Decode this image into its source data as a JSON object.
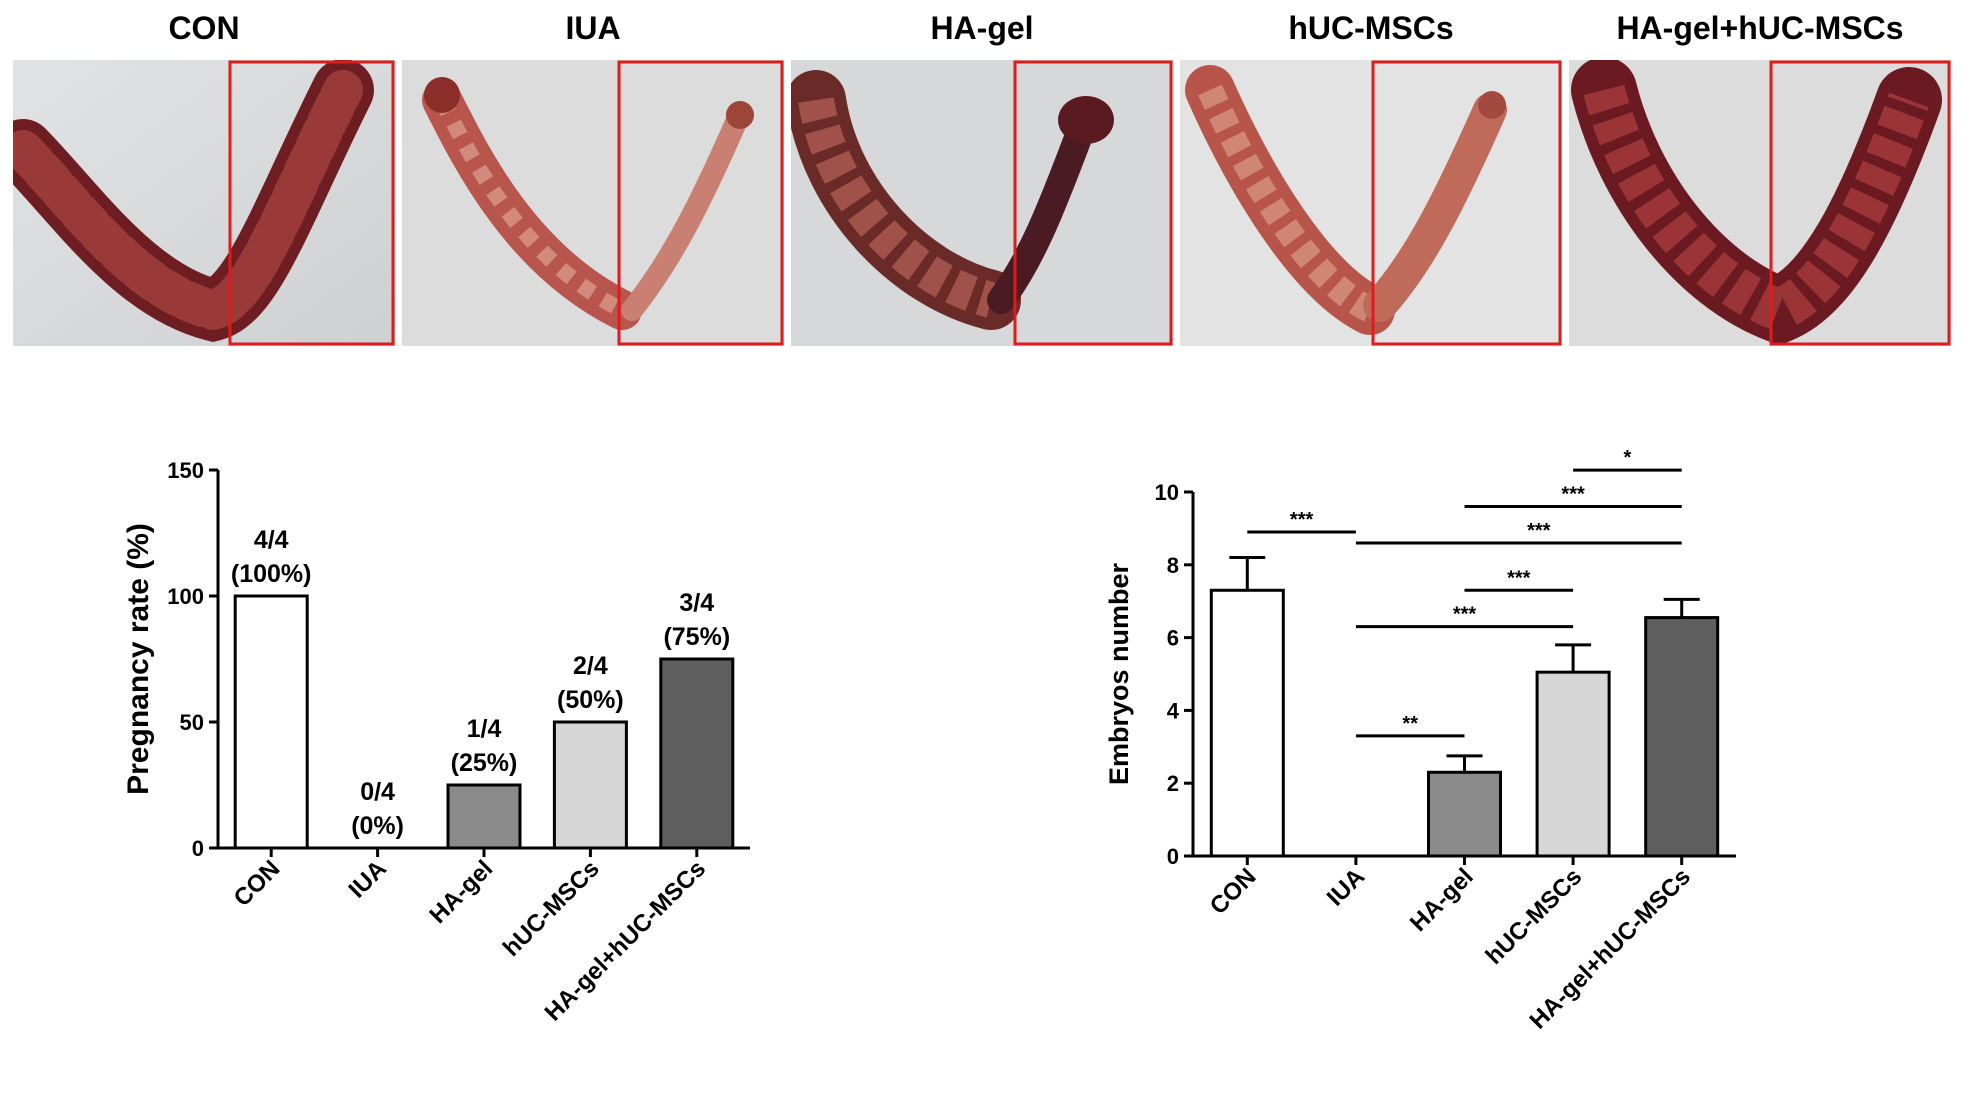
{
  "photos": [
    {
      "label": "CON"
    },
    {
      "label": "IUA"
    },
    {
      "label": "HA-gel"
    },
    {
      "label": "hUC-MSCs"
    },
    {
      "label": "HA-gel+hUC-MSCs"
    }
  ],
  "colors": {
    "highlight_box": "#e01b1b",
    "tissue_dark": "#6e1e22",
    "tissue_mid": "#9a3a38",
    "tissue_light": "#c47a6a",
    "background_photo": "#d9dadb",
    "bar_con": "#ffffff",
    "bar_iua": "#ffffff",
    "bar_hagel": "#8a8a8a",
    "bar_huc": "#d6d6d6",
    "bar_combo": "#5e5e5e"
  },
  "chart_data": [
    {
      "type": "bar",
      "categories": [
        "CON",
        "IUA",
        "HA-gel",
        "hUC-MSCs",
        "HA-gel+hUC-MSCs"
      ],
      "values": [
        100,
        0,
        25,
        50,
        75
      ],
      "data_labels": [
        [
          "4/4",
          "(100%)"
        ],
        [
          "0/4",
          "(0%)"
        ],
        [
          "1/4",
          "(25%)"
        ],
        [
          "2/4",
          "(50%)"
        ],
        [
          "3/4",
          "(75%)"
        ]
      ],
      "title": "",
      "xlabel": "",
      "ylabel": "Pregnancy rate (%)",
      "ylim": [
        0,
        150
      ],
      "yticks": [
        0,
        50,
        100,
        150
      ],
      "grid": false
    },
    {
      "type": "bar",
      "categories": [
        "CON",
        "IUA",
        "HA-gel",
        "hUC-MSCs",
        "HA-gel+hUC-MSCs"
      ],
      "values": [
        7.3,
        0,
        2.3,
        5.05,
        6.55
      ],
      "errors": [
        0.9,
        0,
        0.45,
        0.75,
        0.5
      ],
      "title": "",
      "xlabel": "",
      "ylabel": "Embryos number",
      "ylim": [
        0,
        10
      ],
      "yticks": [
        0,
        2,
        4,
        6,
        8,
        10
      ],
      "grid": false,
      "significance": [
        {
          "from": 0,
          "to": 1,
          "label": "***",
          "level": 8.9
        },
        {
          "from": 1,
          "to": 4,
          "label": "***",
          "level": 8.6
        },
        {
          "from": 1,
          "to": 2,
          "label": "**",
          "level": 3.3
        },
        {
          "from": 1,
          "to": 3,
          "label": "***",
          "level": 6.3
        },
        {
          "from": 2,
          "to": 3,
          "label": "***",
          "level": 7.3
        },
        {
          "from": 2,
          "to": 4,
          "label": "***",
          "level": 9.6
        },
        {
          "from": 3,
          "to": 4,
          "label": "*",
          "level": 10.6
        }
      ]
    }
  ]
}
